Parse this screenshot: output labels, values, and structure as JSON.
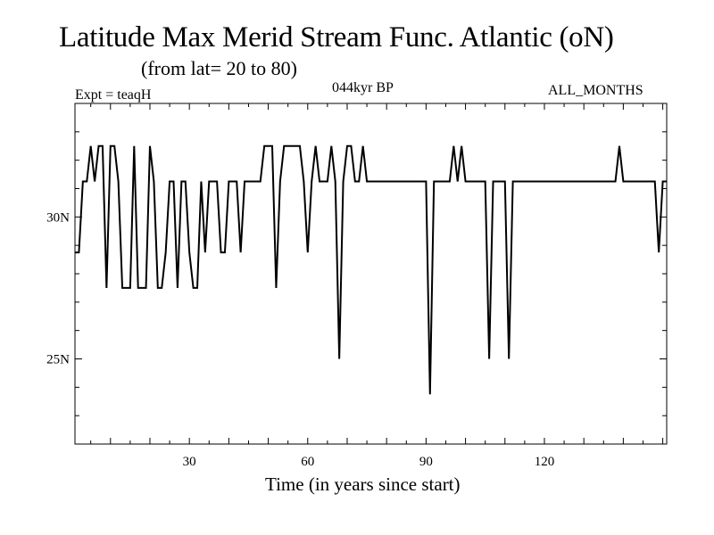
{
  "chart_data": {
    "type": "line",
    "title": "Latitude Max Merid Stream Func. Atlantic (oN)",
    "subtitle": "(from lat= 20 to 80)",
    "experiment": "Expt = teaqH",
    "period": "044kyr BP",
    "season": "ALL_MONTHS",
    "xlabel": "Time (in years since start)",
    "ylabel": "",
    "xlim": [
      1,
      151
    ],
    "ylim": [
      22,
      34
    ],
    "x_ticks": [
      30,
      60,
      90,
      120
    ],
    "x_tick_labels": [
      "30",
      "60",
      "90",
      "120"
    ],
    "y_ticks": [
      25,
      30
    ],
    "y_tick_labels": [
      "25N",
      "30N"
    ],
    "series": [
      {
        "name": "Latitude Max Merid Stream Func. Atlantic",
        "x_start": 1,
        "x_step": 1,
        "values": [
          28.75,
          28.75,
          31.25,
          31.25,
          32.5,
          31.25,
          32.5,
          32.5,
          27.5,
          32.5,
          32.5,
          31.25,
          27.5,
          27.5,
          27.5,
          32.5,
          27.5,
          27.5,
          27.5,
          32.5,
          31.25,
          27.5,
          27.5,
          28.75,
          31.25,
          31.25,
          27.5,
          31.25,
          31.25,
          28.75,
          27.5,
          27.5,
          31.25,
          28.75,
          31.25,
          31.25,
          31.25,
          28.75,
          28.75,
          31.25,
          31.25,
          31.25,
          28.75,
          31.25,
          31.25,
          31.25,
          31.25,
          31.25,
          32.5,
          32.5,
          32.5,
          27.5,
          31.25,
          32.5,
          32.5,
          32.5,
          32.5,
          32.5,
          31.25,
          28.75,
          31.25,
          32.5,
          31.25,
          31.25,
          31.25,
          32.5,
          31.25,
          25,
          31.25,
          32.5,
          32.5,
          31.25,
          31.25,
          32.5,
          31.25,
          31.25,
          31.25,
          31.25,
          31.25,
          31.25,
          31.25,
          31.25,
          31.25,
          31.25,
          31.25,
          31.25,
          31.25,
          31.25,
          31.25,
          31.25,
          23.75,
          31.25,
          31.25,
          31.25,
          31.25,
          31.25,
          32.5,
          31.25,
          32.5,
          31.25,
          31.25,
          31.25,
          31.25,
          31.25,
          31.25,
          25,
          31.25,
          31.25,
          31.25,
          31.25,
          25,
          31.25,
          31.25,
          31.25,
          31.25,
          31.25,
          31.25,
          31.25,
          31.25,
          31.25,
          31.25,
          31.25,
          31.25,
          31.25,
          31.25,
          31.25,
          31.25,
          31.25,
          31.25,
          31.25,
          31.25,
          31.25,
          31.25,
          31.25,
          31.25,
          31.25,
          31.25,
          31.25,
          32.5,
          31.25,
          31.25,
          31.25,
          31.25,
          31.25,
          31.25,
          31.25,
          31.25,
          31.25,
          28.75,
          31.25,
          31.25
        ]
      }
    ]
  }
}
